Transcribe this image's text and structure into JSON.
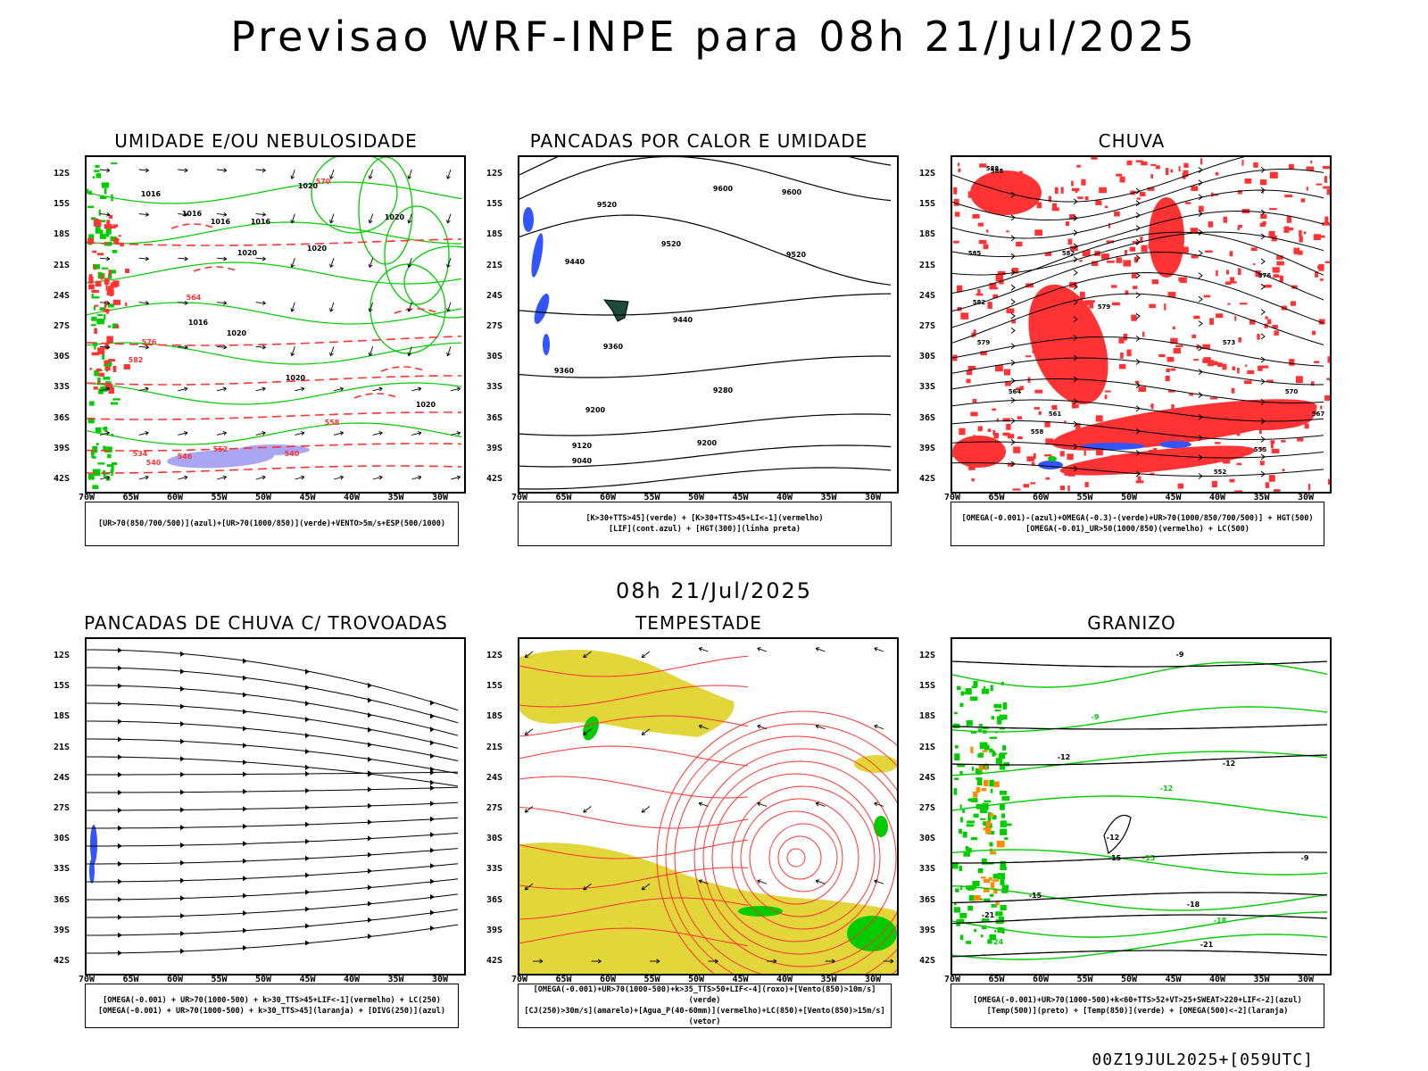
{
  "header": {
    "title": "Previsao WRF-INPE  para 08h 21/Jul/2025",
    "subtitle": "08h 21/Jul/2025",
    "footer": "00Z19JUL2025+[059UTC]"
  },
  "axes": {
    "lat_ticks": [
      "12S",
      "15S",
      "18S",
      "21S",
      "24S",
      "27S",
      "30S",
      "33S",
      "36S",
      "39S",
      "42S"
    ],
    "lon_ticks": [
      "70W",
      "65W",
      "60W",
      "55W",
      "50W",
      "45W",
      "40W",
      "35W",
      "30W"
    ]
  },
  "panels": [
    {
      "title": "UMIDADE E/OU NEBULOSIDADE",
      "legend": [
        "[UR>70(850/700/500)](azul)+[UR>70(1000/850)](verde)+VENTO>5m/s+ESP(500/1000)"
      ],
      "contour_labels": [
        "1016",
        "1016",
        "1016",
        "1016",
        "1020",
        "1020",
        "1020",
        "1020",
        "1016",
        "1020",
        "1020",
        "1020",
        "564",
        "570",
        "576",
        "582",
        "552",
        "546",
        "540",
        "534",
        "540",
        "558"
      ]
    },
    {
      "title": "PANCADAS POR CALOR E UMIDADE",
      "legend": [
        "[K>30+TTS>45](verde) + [K>30+TTS>45+LI<-1](vermelho)",
        "[LIF](cont.azul) + [HGT(300)](linha preta)"
      ],
      "contour_labels": [
        "9600",
        "9600",
        "9520",
        "9520",
        "9520",
        "9440",
        "9440",
        "9360",
        "9360",
        "9280",
        "9200",
        "9200",
        "9120",
        "9040"
      ]
    },
    {
      "title": "CHUVA",
      "legend": [
        "[OMEGA(-0.001)-(azul)+OMEGA(-0.3)-(verde)+UR>70(1000/850/700/500)] + HGT(500)",
        "[OMEGA(-0.01)_UR>50(1000/850)(vermelho) + LC(500)"
      ],
      "contour_labels": [
        "588",
        "582",
        "579",
        "576",
        "573",
        "570",
        "567",
        "564",
        "561",
        "558",
        "555",
        "552",
        "588",
        "585",
        "582",
        "579"
      ]
    },
    {
      "title": "PANCADAS DE CHUVA C/ TROVOADAS",
      "legend": [
        "[OMEGA(-0.001) + UR>70(1000-500) + k>30_TTS>45+LIF<-1](vermelho) + LC(250)",
        "[OMEGA(-0.001) + UR>70(1000-500) + k>30_TTS>45](laranja) + [DIVG(250)](azul)"
      ],
      "contour_labels": []
    },
    {
      "title": "TEMPESTADE",
      "legend": [
        "[OMEGA(-0.001)+UR>70(1000-500)+k>35_TTS>50+LIF<-4](roxo)+[Vento(850)>10m/s](verde)",
        "[CJ(250)>30m/s](amarelo)+[Agua_P(40-60mm)](vermelho)+LC(850)+[Vento(850)>15m/s](vetor)"
      ],
      "contour_labels": []
    },
    {
      "title": "GRANIZO",
      "legend": [
        "[OMEGA(-0.001)+UR>70(1000-500)+k<60+TTS>52+VT>25+SWEAT>220+LIF<-2](azul)",
        "[Temp(500)](preto) + [Temp(850)](verde) + [OMEGA(500)<-2](laranja)"
      ],
      "contour_labels": [
        "-9",
        "-9",
        "-12",
        "-12",
        "-12",
        "-12",
        "-15",
        "-15",
        "-15",
        "-18",
        "-18",
        "-21",
        "-21",
        "-24",
        "-9"
      ]
    }
  ],
  "colors": {
    "coast": "#000000",
    "green": "#00cc00",
    "red": "#ff3333",
    "blue": "#3355ff",
    "lavender": "#a9a6f5",
    "yellow": "#e2d63a",
    "darkgreen": "#1b4b3c"
  }
}
